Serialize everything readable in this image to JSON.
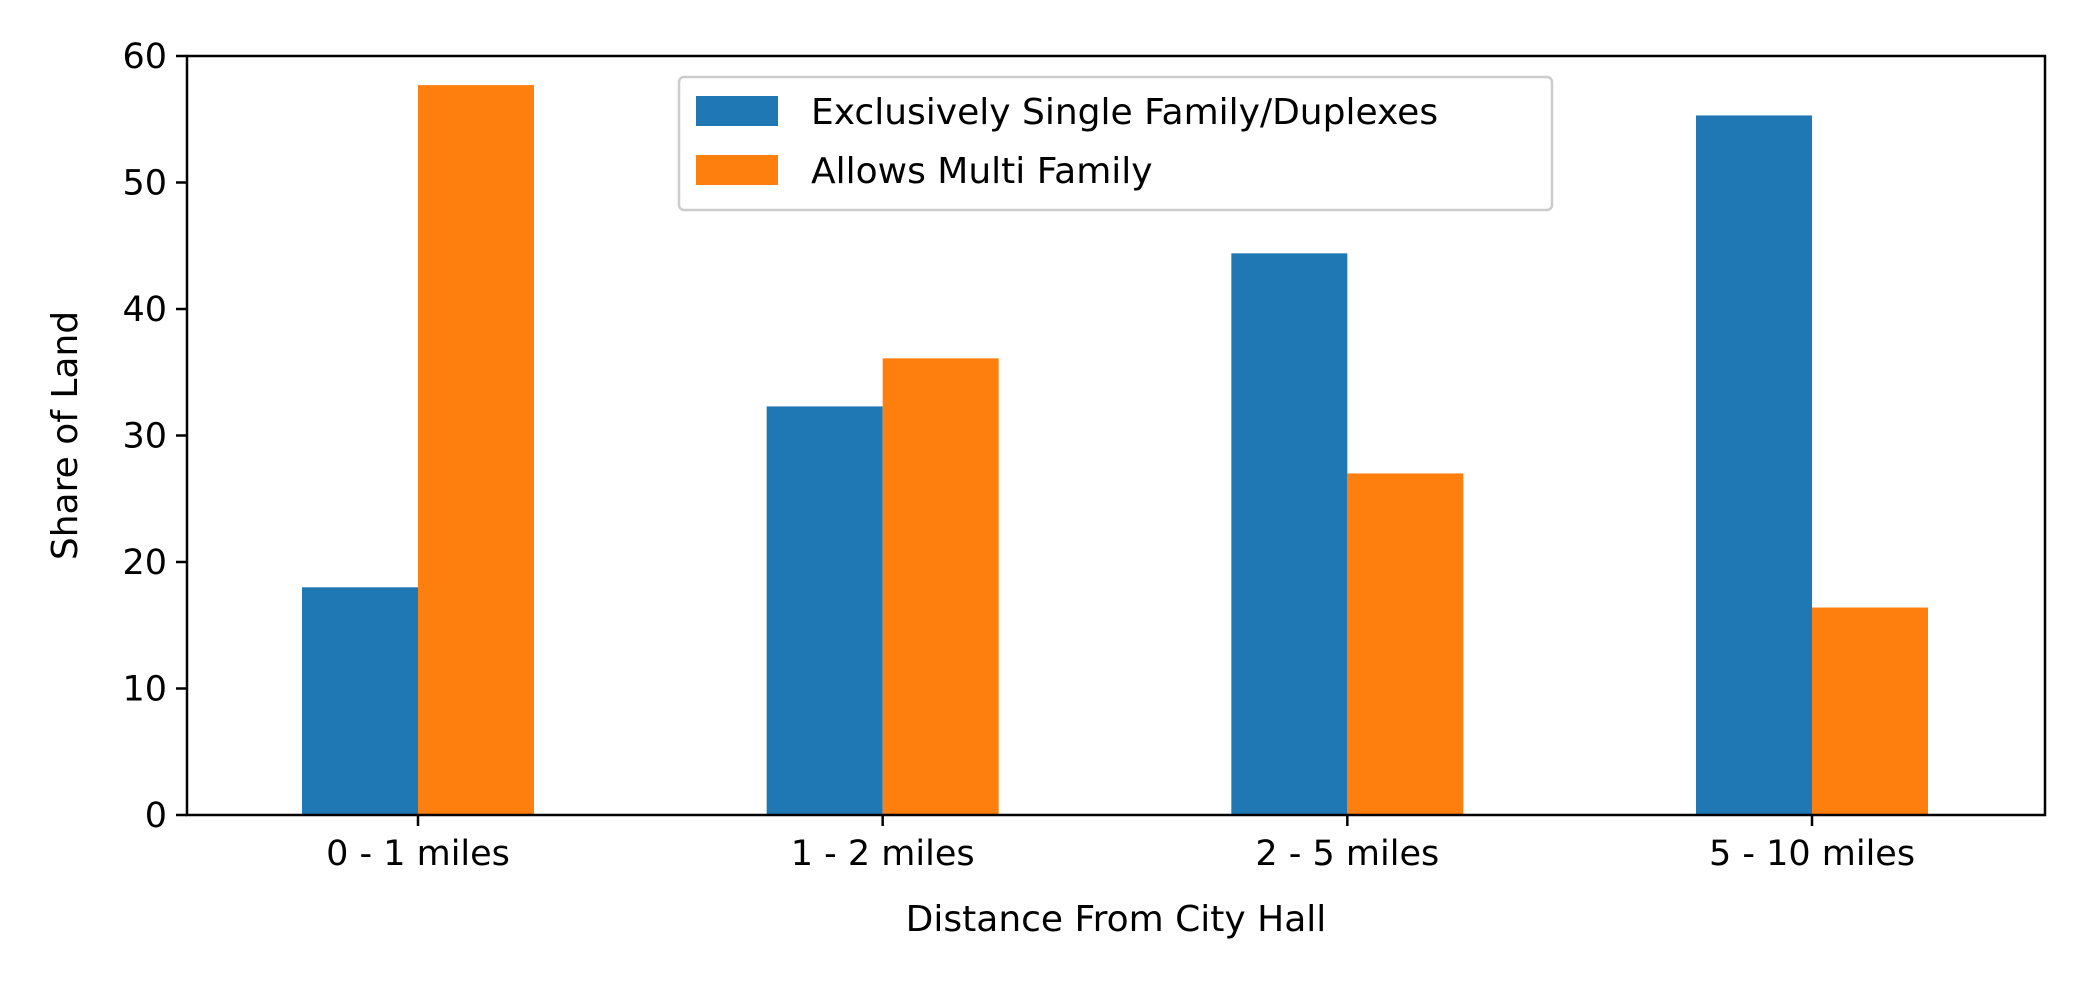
{
  "chart_data": {
    "type": "bar",
    "title": "",
    "xlabel": "Distance From City Hall",
    "ylabel": "Share of Land",
    "categories": [
      "0 - 1 miles",
      "1 - 2 miles",
      "2 - 5 miles",
      "5 - 10 miles"
    ],
    "series": [
      {
        "name": "Exclusively Single Family/Duplexes",
        "color": "#1f77b4",
        "values": [
          18.0,
          32.3,
          44.4,
          55.3
        ]
      },
      {
        "name": "Allows Multi Family",
        "color": "#ff7f0e",
        "values": [
          57.7,
          36.1,
          27.0,
          16.4
        ]
      }
    ],
    "ylim": [
      0,
      60
    ],
    "yticks": [
      0,
      10,
      20,
      30,
      40,
      50,
      60
    ],
    "grid": false,
    "legend": "upper center"
  }
}
